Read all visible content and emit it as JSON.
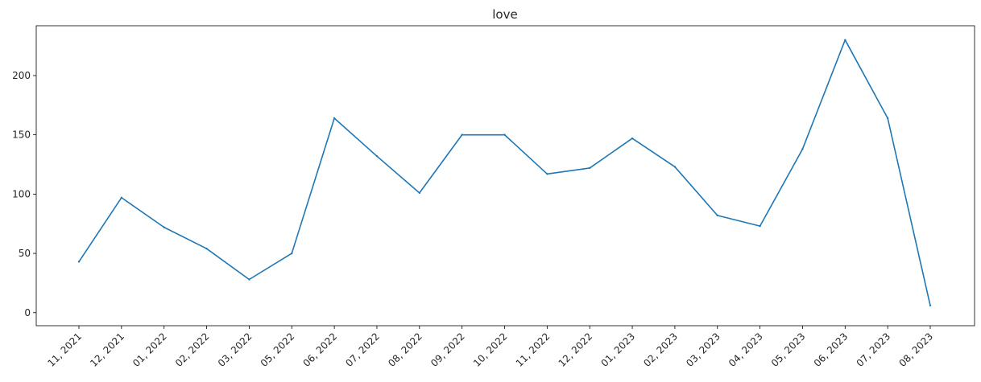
{
  "chart_data": {
    "type": "line",
    "title": "love",
    "xlabel": "",
    "ylabel": "",
    "categories": [
      "11, 2021",
      "12, 2021",
      "01, 2022",
      "02, 2022",
      "03, 2022",
      "05, 2022",
      "06, 2022",
      "07, 2022",
      "08, 2022",
      "09, 2022",
      "10, 2022",
      "11, 2022",
      "12, 2022",
      "01, 2023",
      "02, 2023",
      "03, 2023",
      "04, 2023",
      "05, 2023",
      "06, 2023",
      "07, 2023",
      "08, 2023"
    ],
    "series": [
      {
        "values": [
          43,
          97,
          72,
          54,
          28,
          50,
          164,
          132,
          101,
          150,
          150,
          117,
          122,
          147,
          123,
          82,
          73,
          138,
          230,
          164,
          6
        ],
        "color": "#1f77b4"
      }
    ],
    "ylim": [
      -11,
      242
    ],
    "yticks": [
      0,
      50,
      100,
      150,
      200
    ],
    "grid": false,
    "legend": "none"
  }
}
